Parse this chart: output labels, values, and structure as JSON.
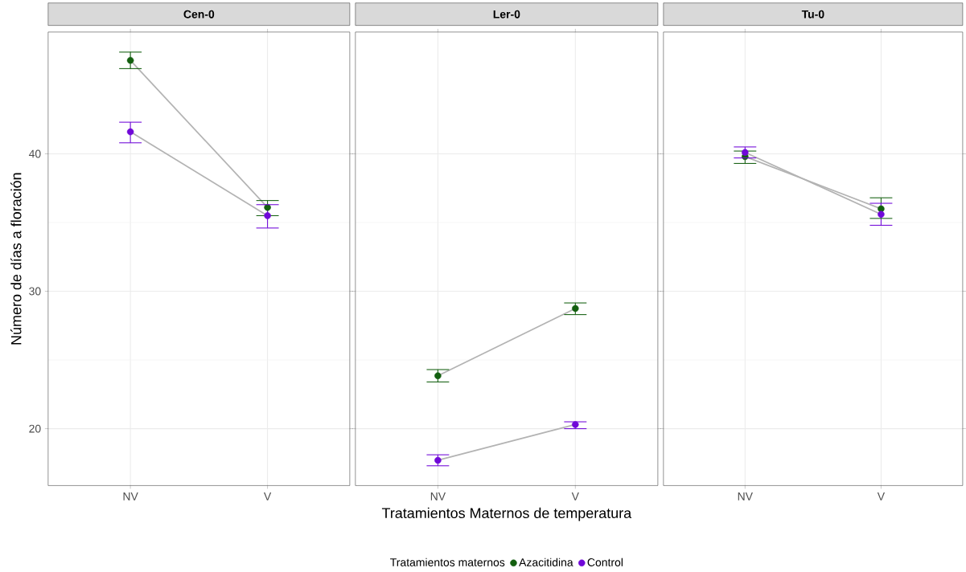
{
  "chart_data": [
    {
      "type": "line",
      "title": "Cen-0",
      "ylabel": "Número de días a floración",
      "categories": [
        "NV",
        "V"
      ],
      "ylim": [
        15.86,
        48.86
      ],
      "yticks": [
        20,
        30,
        40
      ],
      "grid": true,
      "marker": "circle",
      "series": [
        {
          "color": "#135f0f",
          "values": [
            46.8,
            36.1
          ],
          "errors": [
            [
              46.2,
              47.4
            ],
            [
              35.5,
              36.6
            ]
          ]
        },
        {
          "color": "#7008d8",
          "values": [
            41.6,
            35.5
          ],
          "errors": [
            [
              40.8,
              42.3
            ],
            [
              34.6,
              36.3
            ]
          ]
        }
      ]
    },
    {
      "type": "line",
      "title": "Ler-0",
      "xlabel": "Tratamientos Maternos de temperatura",
      "legend_title": "Tratamientos maternos",
      "legend": "bottom",
      "tick_labels": "x",
      "categories": [
        "NV",
        "V"
      ],
      "ylim": [
        15.86,
        48.86
      ],
      "grid": true,
      "marker": "circle",
      "series": [
        {
          "name": "Azacitidina",
          "color": "#135f0f",
          "values": [
            23.85,
            28.75
          ],
          "errors": [
            [
              23.4,
              24.3
            ],
            [
              28.3,
              29.15
            ]
          ]
        },
        {
          "name": "Control",
          "color": "#7008d8",
          "values": [
            17.7,
            20.3
          ],
          "errors": [
            [
              17.3,
              18.1
            ],
            [
              20.0,
              20.5
            ]
          ]
        }
      ]
    },
    {
      "type": "line",
      "title": "Tu-0",
      "tick_labels": "x",
      "categories": [
        "NV",
        "V"
      ],
      "ylim": [
        15.86,
        48.86
      ],
      "grid": true,
      "marker": "circle",
      "series": [
        {
          "color": "#135f0f",
          "values": [
            39.8,
            36.0
          ],
          "errors": [
            [
              39.3,
              40.2
            ],
            [
              35.3,
              36.8
            ]
          ]
        },
        {
          "color": "#7008d8",
          "values": [
            40.1,
            35.6
          ],
          "errors": [
            [
              39.7,
              40.5
            ],
            [
              34.8,
              36.4
            ]
          ]
        }
      ]
    }
  ]
}
